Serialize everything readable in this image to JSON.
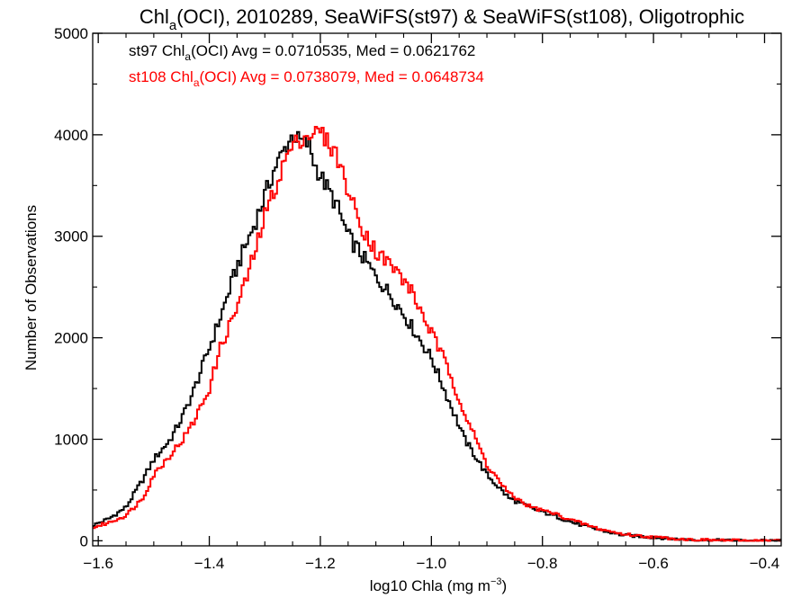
{
  "chart_data": {
    "type": "line",
    "title_parts": {
      "pre": "Chl",
      "sub": "a",
      "post": "(OCI), 2010289, SeaWiFS(st97) & SeaWiFS(st108), Oligotrophic"
    },
    "annotations": [
      {
        "pre": "st97 Chl",
        "sub": "a",
        "post": "(OCI) Avg = 0.0710535, Med = 0.0621762",
        "color": "#000000"
      },
      {
        "pre": "st108 Chl",
        "sub": "a",
        "post": "(OCI) Avg = 0.0738079, Med = 0.0648734",
        "color": "#ff0000"
      }
    ],
    "xlabel_parts": {
      "pre": "log10 Chla (mg m",
      "sup": "−3",
      "post": ")"
    },
    "ylabel": "Number of Observations",
    "xlim": [
      -1.61,
      -0.37
    ],
    "ylim": [
      -50,
      5000
    ],
    "x_ticks": [
      -1.6,
      -1.4,
      -1.2,
      -1.0,
      -0.8,
      -0.6,
      -0.4
    ],
    "x_tick_labels": [
      "−1.6",
      "−1.4",
      "−1.2",
      "−1.0",
      "−0.8",
      "−0.6",
      "−0.4"
    ],
    "y_ticks": [
      0,
      1000,
      2000,
      3000,
      4000,
      5000
    ],
    "y_tick_labels": [
      "0",
      "1000",
      "2000",
      "3000",
      "4000",
      "5000"
    ],
    "grid": false,
    "step_style": "histogram",
    "series": [
      {
        "color": "#000000",
        "points": [
          [
            -1.61,
            150
          ],
          [
            -1.58,
            220
          ],
          [
            -1.55,
            330
          ],
          [
            -1.52,
            600
          ],
          [
            -1.5,
            800
          ],
          [
            -1.47,
            1000
          ],
          [
            -1.45,
            1200
          ],
          [
            -1.43,
            1450
          ],
          [
            -1.4,
            1900
          ],
          [
            -1.38,
            2200
          ],
          [
            -1.35,
            2700
          ],
          [
            -1.32,
            3100
          ],
          [
            -1.3,
            3400
          ],
          [
            -1.28,
            3700
          ],
          [
            -1.26,
            3900
          ],
          [
            -1.25,
            4000
          ],
          [
            -1.24,
            3950
          ],
          [
            -1.22,
            3900
          ],
          [
            -1.21,
            3700
          ],
          [
            -1.19,
            3500
          ],
          [
            -1.17,
            3300
          ],
          [
            -1.15,
            3000
          ],
          [
            -1.13,
            2850
          ],
          [
            -1.1,
            2600
          ],
          [
            -1.07,
            2400
          ],
          [
            -1.04,
            2150
          ],
          [
            -1.0,
            1800
          ],
          [
            -0.97,
            1400
          ],
          [
            -0.94,
            1000
          ],
          [
            -0.9,
            650
          ],
          [
            -0.86,
            420
          ],
          [
            -0.82,
            320
          ],
          [
            -0.78,
            250
          ],
          [
            -0.74,
            170
          ],
          [
            -0.7,
            110
          ],
          [
            -0.66,
            60
          ],
          [
            -0.62,
            40
          ],
          [
            -0.58,
            25
          ],
          [
            -0.54,
            12
          ],
          [
            -0.5,
            6
          ],
          [
            -0.45,
            3
          ],
          [
            -0.4,
            1
          ],
          [
            -0.37,
            0
          ]
        ]
      },
      {
        "color": "#ff0000",
        "points": [
          [
            -1.61,
            130
          ],
          [
            -1.58,
            180
          ],
          [
            -1.55,
            250
          ],
          [
            -1.52,
            420
          ],
          [
            -1.5,
            650
          ],
          [
            -1.47,
            850
          ],
          [
            -1.45,
            980
          ],
          [
            -1.43,
            1150
          ],
          [
            -1.4,
            1500
          ],
          [
            -1.38,
            1900
          ],
          [
            -1.35,
            2300
          ],
          [
            -1.32,
            2800
          ],
          [
            -1.3,
            3200
          ],
          [
            -1.28,
            3500
          ],
          [
            -1.26,
            3800
          ],
          [
            -1.24,
            3950
          ],
          [
            -1.22,
            4000
          ],
          [
            -1.2,
            4030
          ],
          [
            -1.19,
            3950
          ],
          [
            -1.17,
            3800
          ],
          [
            -1.15,
            3450
          ],
          [
            -1.13,
            3150
          ],
          [
            -1.1,
            2850
          ],
          [
            -1.07,
            2700
          ],
          [
            -1.04,
            2500
          ],
          [
            -1.0,
            2050
          ],
          [
            -0.97,
            1700
          ],
          [
            -0.94,
            1250
          ],
          [
            -0.9,
            750
          ],
          [
            -0.86,
            460
          ],
          [
            -0.82,
            330
          ],
          [
            -0.78,
            270
          ],
          [
            -0.74,
            190
          ],
          [
            -0.7,
            120
          ],
          [
            -0.66,
            70
          ],
          [
            -0.62,
            45
          ],
          [
            -0.58,
            28
          ],
          [
            -0.54,
            14
          ],
          [
            -0.5,
            7
          ],
          [
            -0.45,
            3
          ],
          [
            -0.4,
            1
          ],
          [
            -0.37,
            0
          ]
        ]
      }
    ]
  }
}
